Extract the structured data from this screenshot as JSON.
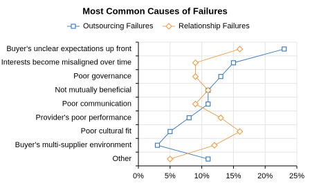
{
  "chart_data": {
    "type": "line",
    "orientation": "horizontal",
    "title": "Most Common Causes of Failures",
    "categories": [
      "Buyer's unclear expectations up front",
      "Interests become misaligned over time",
      "Poor governance",
      "Not mutually beneficial",
      "Poor communication",
      "Provider's poor performance",
      "Poor cultural fit",
      "Buyer's multi-supplier environment",
      "Other"
    ],
    "series": [
      {
        "name": "Outsourcing Failures",
        "color": "#3c7fc4",
        "marker": "square",
        "values": [
          23,
          15,
          13,
          11,
          11,
          8,
          5,
          3,
          11
        ]
      },
      {
        "name": "Relationship Failures",
        "color": "#f0a050",
        "marker": "diamond",
        "values": [
          16,
          9,
          9,
          11,
          9,
          13,
          16,
          12,
          5
        ]
      }
    ],
    "xlim": [
      0,
      25
    ],
    "xticks": [
      {
        "value": 0,
        "label": "0%"
      },
      {
        "value": 5,
        "label": "5%"
      },
      {
        "value": 10,
        "label": "10%"
      },
      {
        "value": 15,
        "label": "15%"
      },
      {
        "value": 20,
        "label": "20%"
      },
      {
        "value": 25,
        "label": "25%"
      }
    ],
    "grid": true,
    "legend": "top"
  }
}
